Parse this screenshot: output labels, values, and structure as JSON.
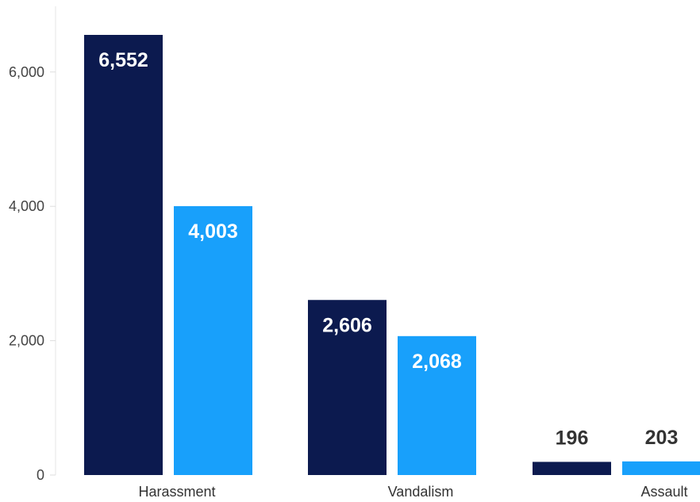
{
  "chart_data": {
    "type": "bar",
    "categories": [
      "Harassment",
      "Vandalism",
      "Assault"
    ],
    "series": [
      {
        "color": "#0c1a4f",
        "values": [
          6552,
          2606,
          196
        ],
        "labels": [
          "6,552",
          "2,606",
          "196"
        ]
      },
      {
        "color": "#18a0fb",
        "values": [
          4003,
          2068,
          203
        ],
        "labels": [
          "4,003",
          "2,068",
          "203"
        ]
      }
    ],
    "ylim": [
      0,
      6552
    ],
    "yticks": [
      0,
      2000,
      4000,
      6000
    ],
    "ytick_labels": [
      "0",
      "2,000",
      "4,000",
      "6,000"
    ],
    "title": "",
    "xlabel": "",
    "ylabel": "",
    "grid": false,
    "legend": "none"
  }
}
